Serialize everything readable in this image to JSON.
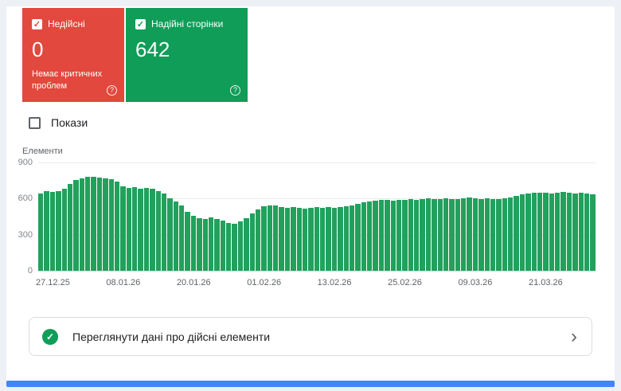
{
  "colors": {
    "invalid": "#e2483d",
    "valid": "#0f9d58",
    "bar": "#21a15c",
    "accent_blue": "#4285f4"
  },
  "icons": {
    "check": "✓",
    "help": "?",
    "chevron": "›"
  },
  "cards": {
    "invalid": {
      "label": "Недійсні",
      "value": "0",
      "subtitle": "Немає критичних проблем",
      "checked": true
    },
    "valid": {
      "label": "Надійні сторінки",
      "value": "642",
      "checked": true
    }
  },
  "impressions_toggle": {
    "label": "Покази",
    "checked": false
  },
  "chart_data": {
    "type": "bar",
    "title": "Елементи",
    "xlabel": "",
    "ylabel": "Елементи",
    "ylim": [
      0,
      900
    ],
    "yticks": [
      0,
      300,
      600,
      900
    ],
    "grid": true,
    "legend": false,
    "bar_color": "#21a15c",
    "x_tick_labels": [
      "27.12.25",
      "08.01.26",
      "20.01.26",
      "01.02.26",
      "13.02.26",
      "25.02.26",
      "09.03.26",
      "21.03.26"
    ],
    "x_tick_indices": [
      2,
      14,
      26,
      38,
      50,
      62,
      74,
      86
    ],
    "values": [
      640,
      660,
      655,
      665,
      680,
      720,
      755,
      770,
      778,
      780,
      775,
      770,
      760,
      740,
      700,
      690,
      695,
      685,
      690,
      680,
      660,
      640,
      605,
      575,
      545,
      490,
      455,
      440,
      430,
      445,
      430,
      415,
      395,
      390,
      410,
      440,
      475,
      510,
      535,
      545,
      540,
      532,
      526,
      530,
      522,
      515,
      526,
      530,
      524,
      528,
      526,
      530,
      536,
      544,
      556,
      566,
      574,
      580,
      586,
      590,
      585,
      591,
      589,
      593,
      587,
      595,
      600,
      594,
      599,
      604,
      598,
      593,
      601,
      606,
      600,
      597,
      603,
      598,
      595,
      605,
      612,
      621,
      633,
      643,
      650,
      647,
      651,
      645,
      651,
      655,
      648,
      641,
      649,
      643,
      635
    ]
  },
  "footer_link": {
    "label": "Переглянути дані про дійсні елементи"
  }
}
